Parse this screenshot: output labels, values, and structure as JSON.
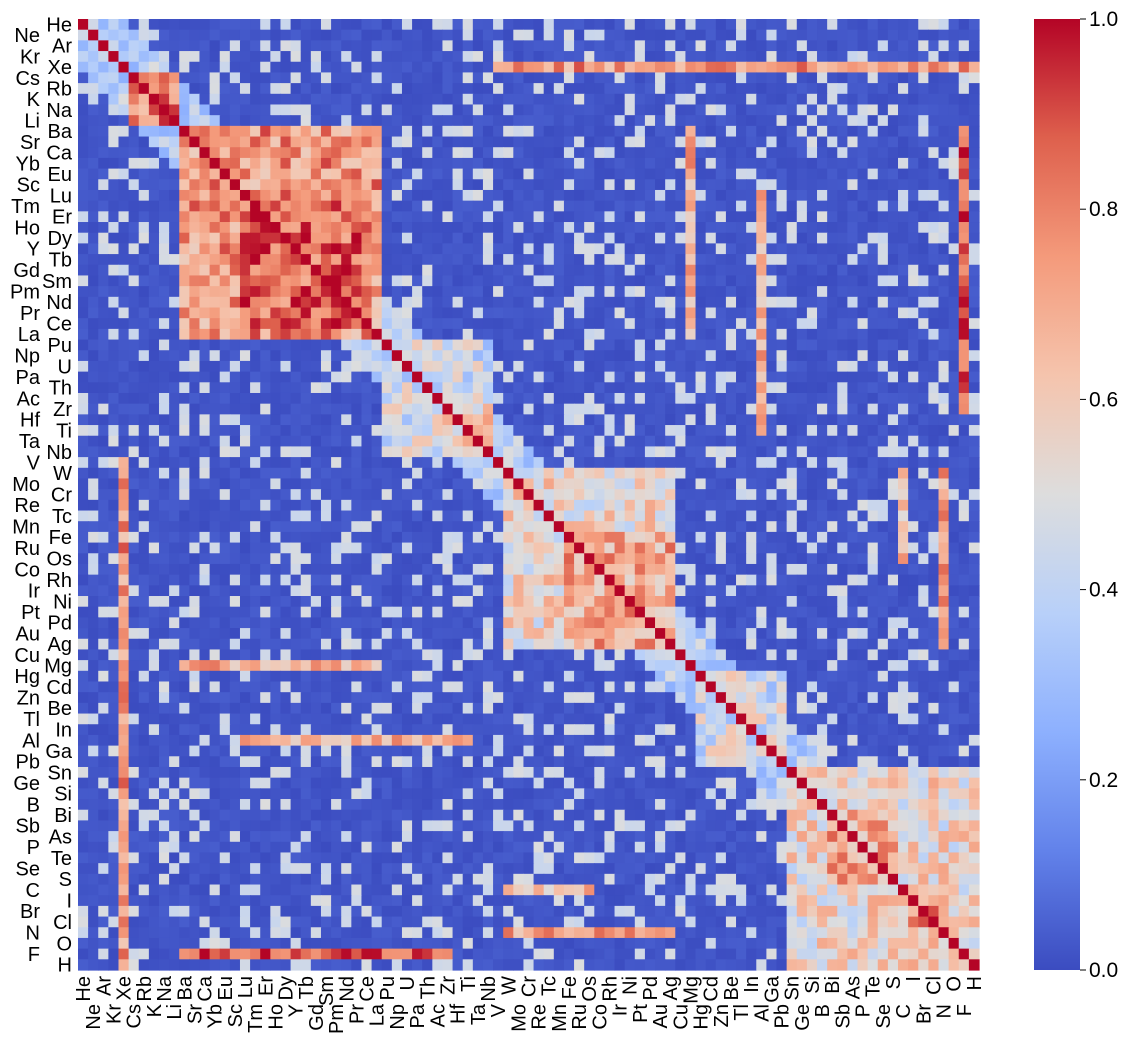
{
  "chart_data": {
    "type": "heatmap",
    "title": "",
    "xlabel": "",
    "ylabel": "",
    "colormap": "coolwarm",
    "vmin": 0.0,
    "vmax": 1.0,
    "colormap_low": "#3b4cc0",
    "colormap_mid": "#dddddd",
    "colormap_high": "#b40426",
    "elements": [
      "He",
      "Ne",
      "Ar",
      "Kr",
      "Xe",
      "Cs",
      "Rb",
      "K",
      "Na",
      "Li",
      "Ba",
      "Sr",
      "Ca",
      "Yb",
      "Eu",
      "Sc",
      "Lu",
      "Tm",
      "Er",
      "Ho",
      "Dy",
      "Y",
      "Tb",
      "Gd",
      "Sm",
      "Pm",
      "Nd",
      "Pr",
      "Ce",
      "La",
      "Pu",
      "Np",
      "U",
      "Pa",
      "Th",
      "Ac",
      "Zr",
      "Hf",
      "Ti",
      "Ta",
      "Nb",
      "V",
      "W",
      "Mo",
      "Cr",
      "Re",
      "Tc",
      "Mn",
      "Fe",
      "Ru",
      "Os",
      "Co",
      "Rh",
      "Ir",
      "Ni",
      "Pt",
      "Pd",
      "Au",
      "Ag",
      "Cu",
      "Mg",
      "Hg",
      "Cd",
      "Zn",
      "Be",
      "Tl",
      "In",
      "Al",
      "Ga",
      "Pb",
      "Sn",
      "Ge",
      "Si",
      "B",
      "Bi",
      "Sb",
      "As",
      "P",
      "Te",
      "Se",
      "S",
      "C",
      "I",
      "Br",
      "Cl",
      "N",
      "O",
      "F",
      "H"
    ],
    "colorbar": {
      "ticks": [
        0.0,
        0.2,
        0.4,
        0.6,
        0.8,
        1.0
      ],
      "tick_labels": [
        "0.0",
        "0.2",
        "0.4",
        "0.6",
        "0.8",
        "1.0"
      ]
    },
    "blocks": [
      {
        "from": "Cs",
        "to": "Li",
        "level": 0.8
      },
      {
        "from": "Ba",
        "to": "La",
        "level": 0.75
      },
      {
        "from": "Lu",
        "to": "Ce",
        "level": 0.85
      },
      {
        "from": "Pu",
        "to": "Nb",
        "level": 0.45
      },
      {
        "from": "Zr",
        "to": "Nb",
        "level": 0.6
      },
      {
        "from": "W",
        "to": "Ag",
        "level": 0.55
      },
      {
        "from": "Fe",
        "to": "Ag",
        "level": 0.7
      },
      {
        "from": "Hg",
        "to": "Pb",
        "level": 0.45
      },
      {
        "from": "Sn",
        "to": "H",
        "level": 0.55
      },
      {
        "from": "Bi",
        "to": "S",
        "level": 0.7
      },
      {
        "from": "I",
        "to": "Cl",
        "level": 0.75
      }
    ],
    "highlight_rows": [
      {
        "element": "Xe",
        "span_from": "V",
        "span_to": "H",
        "level": 0.75
      },
      {
        "element": "Mg",
        "span_from": "Ba",
        "span_to": "La",
        "level": 0.7
      },
      {
        "element": "Al",
        "span_from": "Lu",
        "span_to": "Ti",
        "level": 0.7
      },
      {
        "element": "F",
        "span_from": "Ba",
        "span_to": "Zr",
        "level": 0.85
      },
      {
        "element": "N",
        "span_from": "W",
        "span_to": "Ag",
        "level": 0.7
      },
      {
        "element": "C",
        "span_from": "W",
        "span_to": "Os",
        "level": 0.65
      }
    ]
  }
}
